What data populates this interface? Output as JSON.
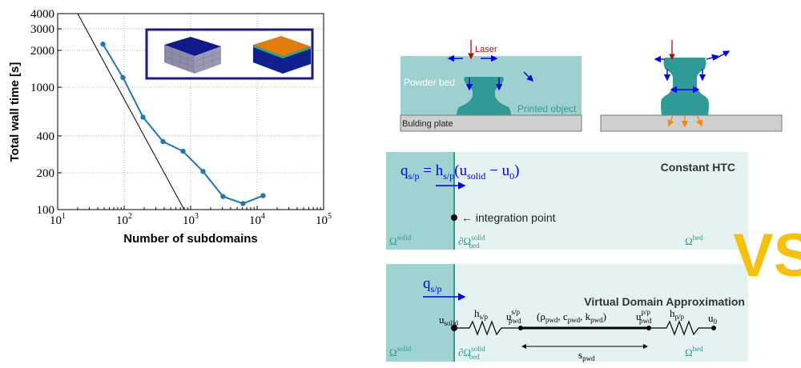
{
  "chart_data": {
    "type": "line",
    "xlabel": "Number of subdomains",
    "ylabel": "Total wall time [s]",
    "xscale": "log",
    "yscale": "log",
    "xlim": [
      10,
      100000
    ],
    "ylim": [
      100,
      4000
    ],
    "x_ticks": [
      10,
      100,
      1000,
      10000,
      100000
    ],
    "x_tick_labels": [
      "10",
      "10",
      "10",
      "10",
      "10"
    ],
    "x_tick_exponents": [
      "1",
      "2",
      "3",
      "4",
      "5"
    ],
    "y_ticks": [
      100,
      200,
      400,
      1000,
      2000,
      3000,
      4000
    ],
    "y_tick_labels": [
      "100",
      "200",
      "400",
      "1000",
      "2000",
      "3000",
      "4000"
    ],
    "grid": true,
    "series": [
      {
        "color": "#1f77b4",
        "marker": "circle",
        "x": [
          48,
          96,
          192,
          384,
          768,
          1536,
          3072,
          6144,
          12288
        ],
        "y": [
          2250,
          1200,
          570,
          360,
          300,
          205,
          128,
          112,
          130
        ]
      }
    ],
    "reference_line": {
      "color": "#000000",
      "x": [
        20,
        800
      ],
      "y": [
        4000,
        100
      ]
    },
    "inset": {
      "border_color": "#1a1a8c",
      "items": [
        "mesh-cube",
        "temperature-cube"
      ]
    }
  },
  "diagram": {
    "top_left": {
      "laser_label": "Laser",
      "powder_label": "Powder bed",
      "object_label": "Printed object",
      "plate_label": "Bulding plate"
    },
    "panel_constant": {
      "title": "Constant HTC",
      "equation": "q",
      "eq_sub": "s/p",
      "eq_rest": " = h",
      "eq_sub2": "s/p",
      "eq_rest2": "(u",
      "eq_sub3": "solid",
      "eq_rest3": " − u",
      "eq_sub4": "0",
      "eq_close": ")",
      "point_label": "← integration point",
      "omega_solid": "Ω",
      "omega_solid_sup": "solid",
      "boundary": "∂Ω",
      "boundary_sup": "solid",
      "boundary_sub": "bed",
      "omega_bed": "Ω",
      "omega_bed_sup": "bed"
    },
    "vs_label": "VS",
    "panel_virtual": {
      "title": "Virtual Domain Approximation",
      "flux": "q",
      "flux_sub": "s/p",
      "u_solid": "u",
      "u_solid_sub": "solid",
      "h_sp": "h",
      "h_sp_sub": "s/p",
      "u_pwd_sp": "u",
      "u_pwd_sp_sup": "s/p",
      "u_pwd_sp_sub": "pwd",
      "params": "(ρ",
      "params_sub1": "pwd",
      "params_mid1": ", c",
      "params_sub2": "pwd",
      "params_mid2": ", k",
      "params_sub3": "pwd",
      "params_close": ")",
      "u_pwd_pp": "u",
      "u_pwd_pp_sup": "p/p",
      "u_pwd_pp_sub": "pwd",
      "h_pp": "h",
      "h_pp_sub": "p/p",
      "u0": "u",
      "u0_sub": "0",
      "s_pwd": "s",
      "s_pwd_sub": "pwd",
      "omega_solid": "Ω",
      "omega_solid_sup": "solid",
      "boundary": "∂Ω",
      "boundary_sup": "solid",
      "boundary_sub": "bed",
      "omega_bed": "Ω",
      "omega_bed_sup": "bed"
    },
    "colors": {
      "powder": "#9fd0d0",
      "object": "#2f9b97",
      "panel_light": "#e4f3f2",
      "panel_dark": "#9ed3d1",
      "interface": "#2a9a92",
      "vs": "#f4c20d",
      "arrow_blue": "#0000ee",
      "arrow_red": "#aa1111",
      "arrow_orange": "#ef8a1a"
    }
  }
}
